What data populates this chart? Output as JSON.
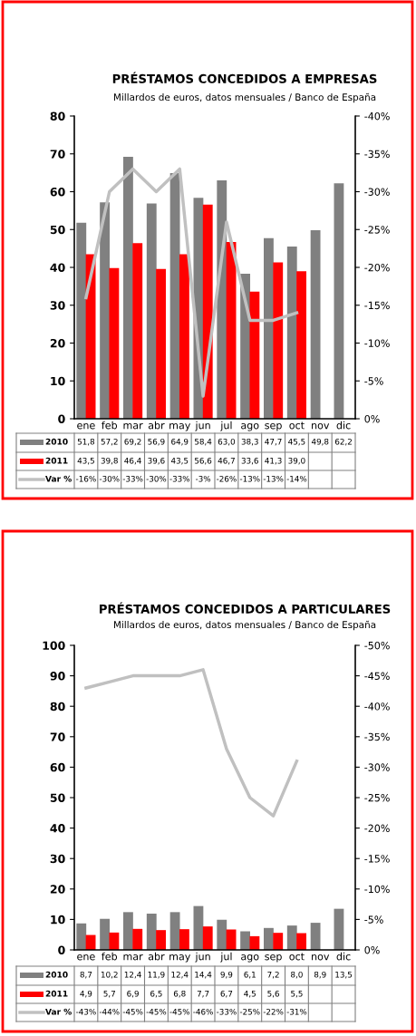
{
  "chart_data": [
    {
      "type": "bar",
      "title": "PRÉSTAMOS CONCEDIDOS A EMPRESAS",
      "subtitle": "Millardos de euros, datos mensuales / Banco de España",
      "categories": [
        "ene",
        "feb",
        "mar",
        "abr",
        "may",
        "jun",
        "jul",
        "ago",
        "sep",
        "oct",
        "nov",
        "dic"
      ],
      "series": [
        {
          "name": "2010",
          "color": "#808080",
          "values": [
            51.8,
            57.2,
            69.2,
            56.9,
            64.9,
            58.4,
            63.0,
            38.3,
            47.7,
            45.5,
            49.8,
            62.2
          ],
          "value_labels": [
            "51,8",
            "57,2",
            "69,2",
            "56,9",
            "64,9",
            "58,4",
            "63,0",
            "38,3",
            "47,7",
            "45,5",
            "49,8",
            "62,2"
          ]
        },
        {
          "name": "2011",
          "color": "#ff0000",
          "values": [
            43.5,
            39.8,
            46.4,
            39.6,
            43.5,
            56.6,
            46.7,
            33.6,
            41.3,
            39.0,
            null,
            null
          ],
          "value_labels": [
            "43,5",
            "39,8",
            "46,4",
            "39,6",
            "43,5",
            "56,6",
            "46,7",
            "33,6",
            "41,3",
            "39,0",
            null,
            null
          ]
        },
        {
          "name": "Var %",
          "type": "line",
          "axis": "y2",
          "color": "#c0c0c0",
          "values": [
            -16,
            -30,
            -33,
            -30,
            -33,
            -3,
            -26,
            -13,
            -13,
            -14,
            null,
            null
          ],
          "value_labels": [
            "-16%",
            "-30%",
            "-33%",
            "-30%",
            "-33%",
            "-3%",
            "-26%",
            "-13%",
            "-13%",
            "-14%",
            null,
            null
          ]
        }
      ],
      "ylim": [
        0,
        80
      ],
      "yticks": [
        0,
        10,
        20,
        30,
        40,
        50,
        60,
        70,
        80
      ],
      "y2lim": [
        0,
        -40
      ],
      "y2ticks": [
        {
          "value": 0,
          "label": "0%"
        },
        {
          "value": -5,
          "label": "-5%"
        },
        {
          "value": -10,
          "label": "-10%"
        },
        {
          "value": -15,
          "label": "-15%"
        },
        {
          "value": -20,
          "label": "-20%"
        },
        {
          "value": -25,
          "label": "-25%"
        },
        {
          "value": -30,
          "label": "-30%"
        },
        {
          "value": -35,
          "label": "-35%"
        },
        {
          "value": -40,
          "label": "-40%"
        }
      ],
      "grid": false,
      "legend": "bottom",
      "marker": "none",
      "line_style": "solid"
    },
    {
      "type": "bar",
      "title": "PRÉSTAMOS CONCEDIDOS A PARTICULARES",
      "subtitle": "Millardos de euros, datos mensuales / Banco de España",
      "categories": [
        "ene",
        "feb",
        "mar",
        "abr",
        "may",
        "jun",
        "jul",
        "ago",
        "sep",
        "oct",
        "nov",
        "dic"
      ],
      "series": [
        {
          "name": "2010",
          "color": "#808080",
          "values": [
            8.7,
            10.2,
            12.4,
            11.9,
            12.4,
            14.4,
            9.9,
            6.1,
            7.2,
            8.0,
            8.9,
            13.5
          ],
          "value_labels": [
            "8,7",
            "10,2",
            "12,4",
            "11,9",
            "12,4",
            "14,4",
            "9,9",
            "6,1",
            "7,2",
            "8,0",
            "8,9",
            "13,5"
          ]
        },
        {
          "name": "2011",
          "color": "#ff0000",
          "values": [
            4.9,
            5.7,
            6.9,
            6.5,
            6.8,
            7.7,
            6.7,
            4.5,
            5.6,
            5.5,
            null,
            null
          ],
          "value_labels": [
            "4,9",
            "5,7",
            "6,9",
            "6,5",
            "6,8",
            "7,7",
            "6,7",
            "4,5",
            "5,6",
            "5,5",
            null,
            null
          ]
        },
        {
          "name": "Var %",
          "type": "line",
          "axis": "y2",
          "color": "#c0c0c0",
          "values": [
            -43,
            -44,
            -45,
            -45,
            -45,
            -46,
            -33,
            -25,
            -22,
            -31,
            null,
            null
          ],
          "value_labels": [
            "-43%",
            "-44%",
            "-45%",
            "-45%",
            "-45%",
            "-46%",
            "-33%",
            "-25%",
            "-22%",
            "-31%",
            null,
            null
          ]
        }
      ],
      "ylim": [
        0,
        100
      ],
      "yticks": [
        0,
        10,
        20,
        30,
        40,
        50,
        60,
        70,
        80,
        90,
        100
      ],
      "y2lim": [
        0,
        -50
      ],
      "y2ticks": [
        {
          "value": 0,
          "label": "0%"
        },
        {
          "value": -5,
          "label": "-5%"
        },
        {
          "value": -10,
          "label": "-10%"
        },
        {
          "value": -15,
          "label": "-15%"
        },
        {
          "value": -20,
          "label": "-20%"
        },
        {
          "value": -25,
          "label": "-25%"
        },
        {
          "value": -30,
          "label": "-30%"
        },
        {
          "value": -35,
          "label": "-35%"
        },
        {
          "value": -40,
          "label": "-40%"
        },
        {
          "value": -45,
          "label": "-45%"
        },
        {
          "value": -50,
          "label": "-50%"
        }
      ],
      "grid": false,
      "legend": "bottom",
      "marker": "none",
      "line_style": "solid"
    }
  ]
}
